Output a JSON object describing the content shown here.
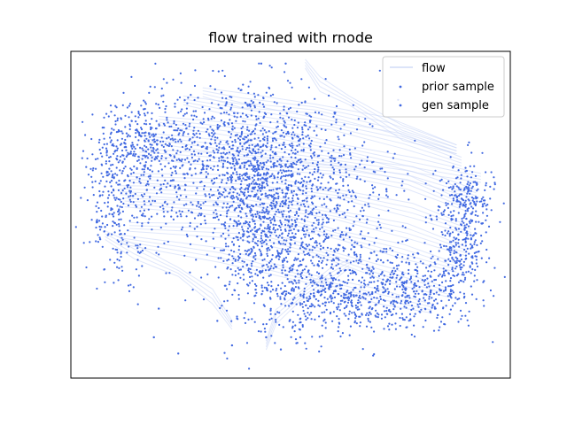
{
  "chart_data": {
    "type": "scatter",
    "title": "flow trained with rnode",
    "xlabel": "",
    "ylabel": "",
    "xticks": [],
    "yticks": [],
    "grid": false,
    "xlim": [
      -4.5,
      4.5
    ],
    "ylim": [
      -4.0,
      4.0
    ],
    "legend": {
      "placement": "top-right",
      "entries": [
        {
          "label": "flow",
          "kind": "line",
          "color": "#c7d4f5"
        },
        {
          "label": "prior sample",
          "kind": "point",
          "color": "#4169e1"
        },
        {
          "label": "gen sample",
          "kind": "point",
          "color": "#4169e1"
        }
      ]
    },
    "colors": {
      "accent": "#4169e1",
      "flow": "#c7d4f5"
    },
    "series": [
      {
        "name": "flow",
        "kind": "trajectories",
        "description_of_values": "each path is a list of [x, y] points",
        "paths": [
          [
            [
              3.6,
              0.2
            ],
            [
              2.4,
              0.8
            ],
            [
              0.9,
              1.1
            ],
            [
              -1.0,
              1.3
            ],
            [
              -3.1,
              1.5
            ]
          ],
          [
            [
              3.7,
              -0.4
            ],
            [
              2.5,
              0.1
            ],
            [
              1.0,
              0.5
            ],
            [
              -0.8,
              0.8
            ],
            [
              -3.3,
              0.9
            ]
          ],
          [
            [
              3.4,
              -1.3
            ],
            [
              2.3,
              -0.9
            ],
            [
              1.0,
              -0.5
            ],
            [
              -0.9,
              0.1
            ],
            [
              -3.4,
              0.3
            ]
          ],
          [
            [
              3.2,
              -1.9
            ],
            [
              2.1,
              -1.5
            ],
            [
              0.8,
              -1.0
            ],
            [
              -1.1,
              -0.4
            ],
            [
              -3.3,
              -0.3
            ]
          ],
          [
            [
              3.9,
              0.9
            ],
            [
              2.6,
              1.2
            ],
            [
              1.1,
              1.6
            ],
            [
              -0.6,
              2.0
            ],
            [
              -2.7,
              2.3
            ]
          ],
          [
            [
              3.5,
              1.3
            ],
            [
              2.3,
              1.8
            ],
            [
              0.8,
              2.2
            ],
            [
              -0.8,
              2.5
            ],
            [
              -2.2,
              2.8
            ]
          ],
          [
            [
              2.9,
              -2.3
            ],
            [
              1.8,
              -2.0
            ],
            [
              0.5,
              -1.6
            ],
            [
              -1.4,
              -1.0
            ],
            [
              -3.5,
              -0.6
            ]
          ],
          [
            [
              3.6,
              -0.9
            ],
            [
              2.4,
              -0.4
            ],
            [
              0.9,
              0.0
            ],
            [
              -1.2,
              0.5
            ],
            [
              -3.5,
              0.6
            ]
          ],
          [
            [
              3.8,
              0.5
            ],
            [
              2.5,
              1.0
            ],
            [
              0.9,
              1.3
            ],
            [
              -1.0,
              1.6
            ],
            [
              -3.0,
              1.9
            ]
          ],
          [
            [
              3.4,
              1.6
            ],
            [
              2.0,
              2.2
            ],
            [
              0.5,
              2.6
            ],
            [
              -1.0,
              2.8
            ],
            [
              -1.8,
              3.0
            ]
          ],
          [
            [
              -1.2,
              -2.7
            ],
            [
              -1.6,
              -2.0
            ],
            [
              -2.3,
              -1.4
            ],
            [
              -3.2,
              -0.9
            ],
            [
              -3.8,
              -0.5
            ]
          ],
          [
            [
              -0.5,
              -3.2
            ],
            [
              -0.3,
              -2.5
            ],
            [
              0.2,
              -2.0
            ],
            [
              0.8,
              -1.5
            ],
            [
              1.2,
              -1.2
            ]
          ],
          [
            [
              0.3,
              3.7
            ],
            [
              0.6,
              3.2
            ],
            [
              1.2,
              2.8
            ],
            [
              2.3,
              2.0
            ],
            [
              3.4,
              1.6
            ]
          ]
        ]
      },
      {
        "name": "prior sample",
        "values": [
          [
            -2.3,
            -3.4
          ],
          [
            -2.7,
            -2.3
          ],
          [
            -1.5,
            -2.6
          ],
          [
            -1.2,
            -3.2
          ],
          [
            -0.5,
            -3.0
          ],
          [
            -0.2,
            -3.3
          ],
          [
            0.2,
            -3.0
          ],
          [
            -3.9,
            -0.6
          ],
          [
            -3.8,
            -0.3
          ],
          [
            -2.8,
            -3.0
          ]
        ]
      },
      {
        "name": "gen sample",
        "values": [
          [
            -0.6,
            3.7
          ],
          [
            -0.1,
            3.7
          ],
          [
            0.9,
            2.5
          ],
          [
            0.4,
            2.3
          ],
          [
            -1.6,
            2.4
          ],
          [
            3.5,
            0.5
          ],
          [
            3.8,
            0.4
          ],
          [
            3.6,
            -0.1
          ],
          [
            3.7,
            -0.6
          ],
          [
            2.7,
            -1.6
          ]
        ]
      }
    ],
    "generated_clouds": [
      {
        "cx": -2.2,
        "cy": 1.2,
        "sx": 0.9,
        "sy": 1.0,
        "count": 420
      },
      {
        "cx": -0.9,
        "cy": 1.5,
        "sx": 0.8,
        "sy": 0.9,
        "count": 420
      },
      {
        "cx": -0.6,
        "cy": 0.0,
        "sx": 0.55,
        "sy": 1.2,
        "count": 700
      },
      {
        "cx": 0.4,
        "cy": 0.8,
        "sx": 0.9,
        "sy": 1.0,
        "count": 480
      },
      {
        "cx": 0.5,
        "cy": -1.2,
        "sx": 0.9,
        "sy": 0.7,
        "count": 480
      },
      {
        "cx": 1.2,
        "cy": -2.2,
        "sx": 0.8,
        "sy": 0.4,
        "count": 320
      },
      {
        "cx": 2.6,
        "cy": -1.8,
        "sx": 0.6,
        "sy": 0.45,
        "count": 260
      },
      {
        "cx": 3.5,
        "cy": -0.7,
        "sx": 0.25,
        "sy": 0.8,
        "count": 260
      },
      {
        "cx": 3.6,
        "cy": 0.4,
        "sx": 0.3,
        "sy": 0.5,
        "count": 140
      },
      {
        "cx": -3.5,
        "cy": 0.3,
        "sx": 0.35,
        "sy": 0.9,
        "count": 260
      },
      {
        "cx": -3.0,
        "cy": 1.8,
        "sx": 0.5,
        "sy": 0.5,
        "count": 220
      }
    ]
  }
}
